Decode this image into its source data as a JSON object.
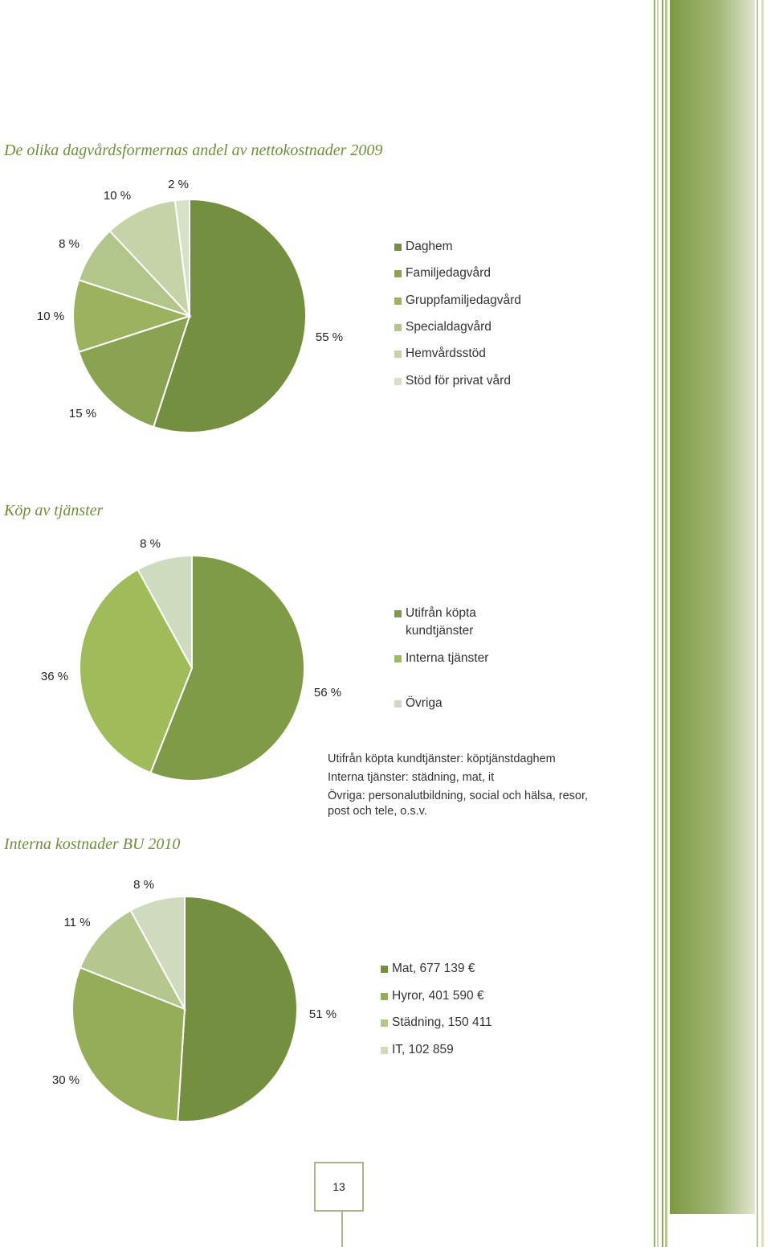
{
  "colors": {
    "c1": "#758f40",
    "c2": "#8aa352",
    "c3": "#9cb25f",
    "c4": "#b2c58a",
    "c5": "#c6d3a8",
    "c6": "#d8e0c6",
    "k1": "#809b48",
    "k2": "#9fbb5a",
    "k3": "#cfdbbe",
    "i1": "#758f40",
    "i2": "#95ad58",
    "i3": "#b5c78e",
    "i4": "#d0dbbd"
  },
  "chart_data": [
    {
      "type": "pie",
      "title": "De olika dagvårdsformernas andel av nettokostnader 2009",
      "labels": [
        "Daghem",
        "Familjedagvård",
        "Gruppfamiljedagvård",
        "Specialdagvård",
        "Hemvårdsstöd",
        "Stöd för privat vård"
      ],
      "values": [
        55,
        15,
        10,
        8,
        10,
        2
      ],
      "value_labels": [
        "55 %",
        "15 %",
        "10 %",
        "8 %",
        "10 %",
        "2 %"
      ],
      "legend_position": "right"
    },
    {
      "type": "pie",
      "title": "Köp av tjänster",
      "labels": [
        "Utifrån köpta kundtjänster",
        "Interna tjänster",
        "Övriga"
      ],
      "values": [
        56,
        36,
        8
      ],
      "value_labels": [
        "56 %",
        "36 %",
        "8 %"
      ],
      "legend_position": "right"
    },
    {
      "type": "pie",
      "title": "Interna kostnader BU 2010",
      "labels": [
        "Mat, 677 139 €",
        "Hyror, 401 590 €",
        "Städning, 150 411",
        "IT, 102 859"
      ],
      "values": [
        51,
        30,
        11,
        8
      ],
      "value_labels": [
        "51 %",
        "30 %",
        "11 %",
        "8 %"
      ],
      "legend_position": "right"
    }
  ],
  "notes": [
    "Utifrån köpta kundtjänster: köptjänstdaghem",
    "Interna tjänster: städning, mat, it",
    "Övriga: personalutbildning, social och hälsa, resor,",
    "post och tele, o.s.v."
  ],
  "page_number": "13"
}
